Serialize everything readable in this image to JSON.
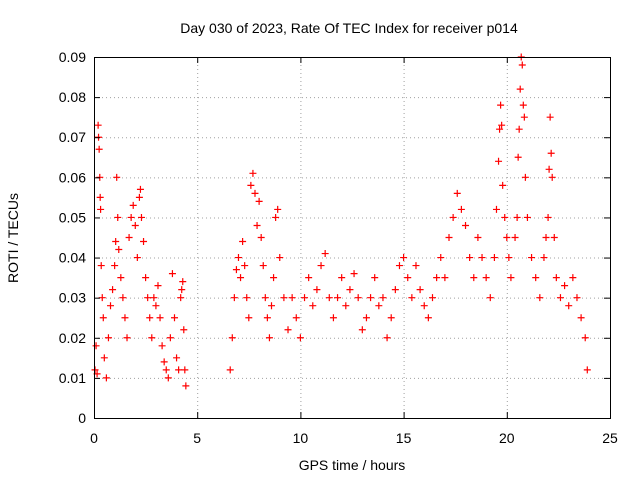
{
  "chart_data": {
    "type": "scatter",
    "title": "Day 030 of 2023, Rate Of TEC Index for receiver p014",
    "xlabel": "GPS time / hours",
    "ylabel": "ROTI / TECUs",
    "xlim": [
      0,
      25
    ],
    "ylim": [
      0,
      0.09
    ],
    "xticks": [
      "0",
      "5",
      "10",
      "15",
      "20",
      "25"
    ],
    "yticks": [
      "0",
      "0.01",
      "0.02",
      "0.03",
      "0.04",
      "0.05",
      "0.06",
      "0.07",
      "0.08",
      "0.09"
    ],
    "grid": true,
    "marker": "+",
    "colors": {
      "series": "#ff0000"
    },
    "series": [
      {
        "points": [
          [
            0.05,
            0.012
          ],
          [
            0.1,
            0.018
          ],
          [
            0.15,
            0.011
          ],
          [
            0.2,
            0.073
          ],
          [
            0.22,
            0.07
          ],
          [
            0.25,
            0.067
          ],
          [
            0.28,
            0.06
          ],
          [
            0.3,
            0.055
          ],
          [
            0.32,
            0.052
          ],
          [
            0.35,
            0.038
          ],
          [
            0.4,
            0.03
          ],
          [
            0.45,
            0.025
          ],
          [
            0.5,
            0.015
          ],
          [
            0.6,
            0.01
          ],
          [
            0.7,
            0.02
          ],
          [
            0.8,
            0.028
          ],
          [
            0.9,
            0.032
          ],
          [
            1.0,
            0.038
          ],
          [
            1.05,
            0.044
          ],
          [
            1.1,
            0.06
          ],
          [
            1.15,
            0.05
          ],
          [
            1.2,
            0.042
          ],
          [
            1.3,
            0.035
          ],
          [
            1.4,
            0.03
          ],
          [
            1.5,
            0.025
          ],
          [
            1.6,
            0.02
          ],
          [
            1.7,
            0.045
          ],
          [
            1.8,
            0.05
          ],
          [
            1.9,
            0.053
          ],
          [
            2.0,
            0.048
          ],
          [
            2.1,
            0.04
          ],
          [
            2.2,
            0.055
          ],
          [
            2.25,
            0.057
          ],
          [
            2.3,
            0.05
          ],
          [
            2.4,
            0.044
          ],
          [
            2.5,
            0.035
          ],
          [
            2.6,
            0.03
          ],
          [
            2.7,
            0.025
          ],
          [
            2.8,
            0.02
          ],
          [
            2.9,
            0.03
          ],
          [
            3.0,
            0.028
          ],
          [
            3.1,
            0.033
          ],
          [
            3.2,
            0.025
          ],
          [
            3.3,
            0.018
          ],
          [
            3.4,
            0.014
          ],
          [
            3.5,
            0.012
          ],
          [
            3.6,
            0.01
          ],
          [
            3.7,
            0.02
          ],
          [
            3.8,
            0.036
          ],
          [
            3.9,
            0.025
          ],
          [
            4.0,
            0.015
          ],
          [
            4.1,
            0.012
          ],
          [
            4.2,
            0.03
          ],
          [
            4.25,
            0.032
          ],
          [
            4.3,
            0.034
          ],
          [
            4.35,
            0.022
          ],
          [
            4.4,
            0.012
          ],
          [
            4.45,
            0.008
          ],
          [
            6.6,
            0.012
          ],
          [
            6.7,
            0.02
          ],
          [
            6.8,
            0.03
          ],
          [
            6.9,
            0.037
          ],
          [
            7.0,
            0.04
          ],
          [
            7.1,
            0.035
          ],
          [
            7.2,
            0.044
          ],
          [
            7.3,
            0.038
          ],
          [
            7.4,
            0.03
          ],
          [
            7.5,
            0.025
          ],
          [
            7.6,
            0.058
          ],
          [
            7.7,
            0.061
          ],
          [
            7.8,
            0.056
          ],
          [
            7.9,
            0.048
          ],
          [
            8.0,
            0.054
          ],
          [
            8.1,
            0.045
          ],
          [
            8.2,
            0.038
          ],
          [
            8.3,
            0.03
          ],
          [
            8.4,
            0.025
          ],
          [
            8.5,
            0.02
          ],
          [
            8.6,
            0.028
          ],
          [
            8.7,
            0.035
          ],
          [
            8.8,
            0.05
          ],
          [
            8.9,
            0.052
          ],
          [
            9.0,
            0.04
          ],
          [
            9.2,
            0.03
          ],
          [
            9.4,
            0.022
          ],
          [
            9.6,
            0.03
          ],
          [
            9.8,
            0.025
          ],
          [
            10.0,
            0.02
          ],
          [
            10.2,
            0.03
          ],
          [
            10.4,
            0.035
          ],
          [
            10.6,
            0.028
          ],
          [
            10.8,
            0.032
          ],
          [
            11.0,
            0.038
          ],
          [
            11.2,
            0.041
          ],
          [
            11.4,
            0.03
          ],
          [
            11.6,
            0.025
          ],
          [
            11.8,
            0.03
          ],
          [
            12.0,
            0.035
          ],
          [
            12.2,
            0.028
          ],
          [
            12.4,
            0.032
          ],
          [
            12.6,
            0.036
          ],
          [
            12.8,
            0.03
          ],
          [
            13.0,
            0.022
          ],
          [
            13.2,
            0.025
          ],
          [
            13.4,
            0.03
          ],
          [
            13.6,
            0.035
          ],
          [
            13.8,
            0.028
          ],
          [
            14.0,
            0.03
          ],
          [
            14.2,
            0.02
          ],
          [
            14.4,
            0.025
          ],
          [
            14.6,
            0.032
          ],
          [
            14.8,
            0.038
          ],
          [
            15.0,
            0.04
          ],
          [
            15.2,
            0.035
          ],
          [
            15.4,
            0.03
          ],
          [
            15.6,
            0.038
          ],
          [
            15.8,
            0.032
          ],
          [
            16.0,
            0.028
          ],
          [
            16.2,
            0.025
          ],
          [
            16.4,
            0.03
          ],
          [
            16.6,
            0.035
          ],
          [
            16.8,
            0.04
          ],
          [
            17.0,
            0.035
          ],
          [
            17.2,
            0.045
          ],
          [
            17.4,
            0.05
          ],
          [
            17.6,
            0.056
          ],
          [
            17.8,
            0.052
          ],
          [
            18.0,
            0.048
          ],
          [
            18.2,
            0.04
          ],
          [
            18.4,
            0.035
          ],
          [
            18.6,
            0.045
          ],
          [
            18.8,
            0.04
          ],
          [
            19.0,
            0.035
          ],
          [
            19.2,
            0.03
          ],
          [
            19.4,
            0.04
          ],
          [
            19.5,
            0.052
          ],
          [
            19.6,
            0.064
          ],
          [
            19.65,
            0.072
          ],
          [
            19.7,
            0.078
          ],
          [
            19.75,
            0.073
          ],
          [
            19.8,
            0.058
          ],
          [
            19.9,
            0.05
          ],
          [
            20.0,
            0.045
          ],
          [
            20.1,
            0.04
          ],
          [
            20.2,
            0.035
          ],
          [
            20.4,
            0.045
          ],
          [
            20.5,
            0.05
          ],
          [
            20.55,
            0.065
          ],
          [
            20.6,
            0.072
          ],
          [
            20.65,
            0.082
          ],
          [
            20.7,
            0.09
          ],
          [
            20.75,
            0.088
          ],
          [
            20.8,
            0.078
          ],
          [
            20.85,
            0.075
          ],
          [
            20.9,
            0.06
          ],
          [
            21.0,
            0.05
          ],
          [
            21.2,
            0.04
          ],
          [
            21.4,
            0.035
          ],
          [
            21.6,
            0.03
          ],
          [
            21.8,
            0.04
          ],
          [
            21.9,
            0.045
          ],
          [
            22.0,
            0.05
          ],
          [
            22.05,
            0.062
          ],
          [
            22.1,
            0.075
          ],
          [
            22.15,
            0.066
          ],
          [
            22.2,
            0.06
          ],
          [
            22.3,
            0.045
          ],
          [
            22.4,
            0.035
          ],
          [
            22.6,
            0.03
          ],
          [
            22.8,
            0.033
          ],
          [
            23.0,
            0.028
          ],
          [
            23.2,
            0.035
          ],
          [
            23.4,
            0.03
          ],
          [
            23.6,
            0.025
          ],
          [
            23.8,
            0.02
          ],
          [
            23.9,
            0.012
          ]
        ]
      }
    ]
  }
}
